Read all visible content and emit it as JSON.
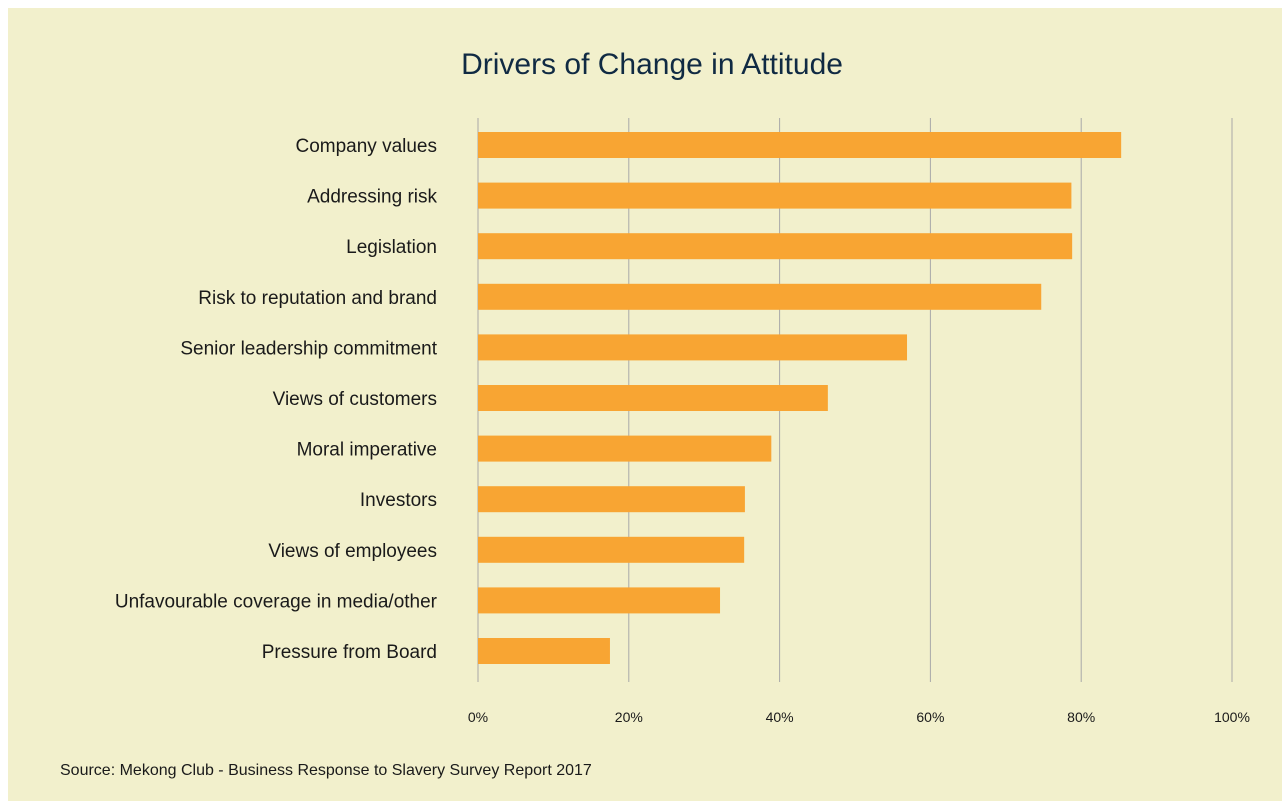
{
  "chart_data": {
    "type": "bar",
    "orientation": "horizontal",
    "title": "Drivers of Change in Attitude",
    "categories": [
      "Company values",
      "Addressing risk",
      "Legislation",
      "Risk to reputation and brand",
      "Senior leadership commitment",
      "Views of customers",
      "Moral imperative",
      "Investors",
      "Views of employees",
      "Unfavourable coverage in media/other",
      "Pressure from Board"
    ],
    "values": [
      85.3,
      78.7,
      78.8,
      74.7,
      56.9,
      46.4,
      38.9,
      35.4,
      35.3,
      32.1,
      17.5
    ],
    "value_unit": "%",
    "xlim": [
      0,
      100
    ],
    "x_ticks": [
      0,
      20,
      40,
      60,
      80,
      100
    ],
    "x_tick_labels": [
      "0%",
      "20%",
      "40%",
      "60%",
      "80%",
      "100%"
    ],
    "xlabel": "",
    "ylabel": "",
    "grid": "vertical",
    "legend": "none",
    "source": "Source: Mekong Club - Business Response to Slavery Survey Report 2017"
  },
  "colors": {
    "background": "#f2f0cc",
    "bar": "#f8a533",
    "gridline": "#a9a9a9",
    "title": "#102a43",
    "text": "#1a1a1a"
  }
}
